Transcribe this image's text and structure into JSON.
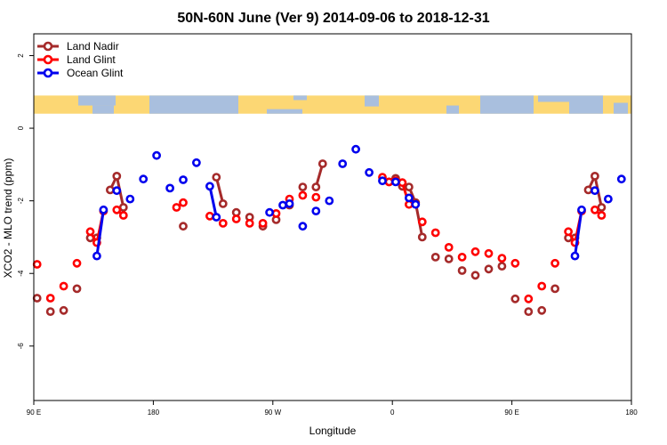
{
  "chart_data": {
    "type": "line",
    "title": "50N-60N June (Ver 9)   2014-09-06 to 2018-12-31",
    "xlabel": "Longitude",
    "ylabel": "XCO2 - MLO trend (ppm)",
    "xaxis": {
      "scale": "longitude 90E to 180 (wrapping through 180, 90W, 0, 90E)",
      "ticks": [
        "90 E",
        "180",
        "90 W",
        "0",
        "90 E",
        "180"
      ]
    },
    "yaxis": {
      "ylim": [
        -7.5,
        2.6
      ],
      "ticks": [
        "2",
        "0",
        "-2",
        "-4",
        "-6"
      ]
    },
    "grid": false,
    "legend_position": "top-left",
    "map_strip": {
      "y_range": [
        0.4,
        0.9
      ],
      "land_color": "#fcd774",
      "ocean_color": "#a9bfde"
    },
    "series": [
      {
        "name": "Land Nadir",
        "color": "#a52a2a",
        "points": [
          [
            92.5,
            -4.68
          ],
          [
            102.5,
            -5.05
          ],
          [
            112.5,
            -5.02
          ],
          [
            122.5,
            -4.42
          ],
          [
            132.5,
            -3.02
          ],
          [
            137.5,
            -3.02
          ],
          [
            147.5,
            -1.7
          ],
          [
            152.5,
            -1.32
          ],
          [
            157.5,
            -2.18
          ],
          [
            202.5,
            -2.7
          ],
          [
            227.5,
            -1.35
          ],
          [
            232.5,
            -2.08
          ],
          [
            242.5,
            -2.32
          ],
          [
            252.5,
            -2.45
          ],
          [
            262.5,
            -2.7
          ],
          [
            272.5,
            -2.52
          ],
          [
            282.5,
            -2.12
          ],
          [
            292.5,
            -1.62
          ],
          [
            302.5,
            -1.62
          ],
          [
            307.5,
            -0.98
          ],
          [
            357.5,
            -1.48
          ],
          [
            362.5,
            -1.38
          ],
          [
            367.5,
            -1.6
          ],
          [
            372.5,
            -1.62
          ],
          [
            377.5,
            -2.05
          ],
          [
            382.5,
            -3.0
          ],
          [
            392.5,
            -3.55
          ],
          [
            402.5,
            -3.6
          ],
          [
            412.5,
            -3.92
          ],
          [
            422.5,
            -4.05
          ],
          [
            432.5,
            -3.88
          ],
          [
            442.5,
            -3.8
          ],
          [
            452.5,
            -4.7
          ],
          [
            462.5,
            -5.05
          ],
          [
            472.5,
            -5.02
          ],
          [
            482.5,
            -4.42
          ],
          [
            492.5,
            -3.02
          ],
          [
            497.5,
            -3.02
          ],
          [
            507.5,
            -1.7
          ],
          [
            512.5,
            -1.32
          ],
          [
            517.5,
            -2.18
          ]
        ]
      },
      {
        "name": "Land Glint",
        "color": "#ff0000",
        "points": [
          [
            92.5,
            -3.75
          ],
          [
            102.5,
            -4.68
          ],
          [
            112.5,
            -4.35
          ],
          [
            122.5,
            -3.72
          ],
          [
            132.5,
            -2.85
          ],
          [
            137.5,
            -3.15
          ],
          [
            142.5,
            -2.28
          ],
          [
            152.5,
            -2.25
          ],
          [
            157.5,
            -2.4
          ],
          [
            197.5,
            -2.18
          ],
          [
            202.5,
            -2.05
          ],
          [
            222.5,
            -2.42
          ],
          [
            232.5,
            -2.62
          ],
          [
            242.5,
            -2.5
          ],
          [
            252.5,
            -2.62
          ],
          [
            262.5,
            -2.62
          ],
          [
            272.5,
            -2.35
          ],
          [
            282.5,
            -1.95
          ],
          [
            292.5,
            -1.85
          ],
          [
            302.5,
            -1.9
          ],
          [
            352.5,
            -1.35
          ],
          [
            357.5,
            -1.48
          ],
          [
            362.5,
            -1.45
          ],
          [
            367.5,
            -1.5
          ],
          [
            372.5,
            -2.1
          ],
          [
            382.5,
            -2.58
          ],
          [
            392.5,
            -2.88
          ],
          [
            402.5,
            -3.28
          ],
          [
            412.5,
            -3.55
          ],
          [
            422.5,
            -3.4
          ],
          [
            432.5,
            -3.45
          ],
          [
            442.5,
            -3.58
          ],
          [
            452.5,
            -3.72
          ],
          [
            462.5,
            -4.7
          ],
          [
            472.5,
            -4.35
          ],
          [
            482.5,
            -3.72
          ],
          [
            492.5,
            -2.85
          ],
          [
            497.5,
            -3.15
          ],
          [
            502.5,
            -2.28
          ],
          [
            512.5,
            -2.25
          ],
          [
            517.5,
            -2.4
          ]
        ]
      },
      {
        "name": "Ocean Glint",
        "color": "#0000ee",
        "points": [
          [
            137.5,
            -3.52
          ],
          [
            142.5,
            -2.25
          ],
          [
            152.5,
            -1.72
          ],
          [
            162.5,
            -1.95
          ],
          [
            172.5,
            -1.4
          ],
          [
            182.5,
            -0.75
          ],
          [
            192.5,
            -1.65
          ],
          [
            202.5,
            -1.42
          ],
          [
            212.5,
            -0.95
          ],
          [
            222.5,
            -1.6
          ],
          [
            227.5,
            -2.45
          ],
          [
            267.5,
            -2.32
          ],
          [
            277.5,
            -2.12
          ],
          [
            282.5,
            -2.08
          ],
          [
            292.5,
            -2.7
          ],
          [
            302.5,
            -2.28
          ],
          [
            312.5,
            -2.0
          ],
          [
            322.5,
            -0.98
          ],
          [
            332.5,
            -0.58
          ],
          [
            342.5,
            -1.22
          ],
          [
            352.5,
            -1.45
          ],
          [
            362.5,
            -1.48
          ],
          [
            372.5,
            -1.92
          ],
          [
            377.5,
            -2.1
          ],
          [
            497.5,
            -3.52
          ],
          [
            502.5,
            -2.25
          ],
          [
            512.5,
            -1.72
          ],
          [
            522.5,
            -1.95
          ],
          [
            532.5,
            -1.4
          ]
        ]
      }
    ]
  }
}
